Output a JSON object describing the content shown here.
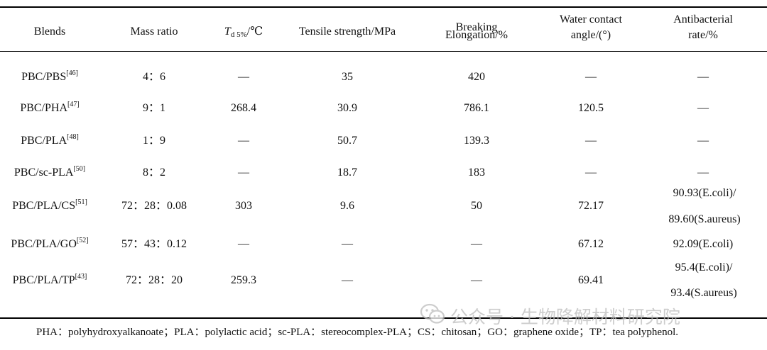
{
  "table": {
    "headers": {
      "blends": "Blends",
      "mass_ratio": "Mass ratio",
      "td": {
        "main": "T",
        "sub": "d 5%",
        "unit": "/℃"
      },
      "tensile": "Tensile strength/MPa",
      "breaking": [
        "Breaking",
        "Elongation/%"
      ],
      "water": [
        "Water contact",
        "angle/(°)"
      ],
      "antibacterial": [
        "Antibacterial",
        "rate/%"
      ]
    },
    "rows": [
      {
        "blend": "PBC/PBS",
        "ref": "[46]",
        "ratio": "4：6",
        "td": "—",
        "tensile": "35",
        "elong": "420",
        "water": "—",
        "anti": [
          "—"
        ]
      },
      {
        "blend": "PBC/PHA",
        "ref": "[47]",
        "ratio": "9：1",
        "td": "268.4",
        "tensile": "30.9",
        "elong": "786.1",
        "water": "120.5",
        "anti": [
          "—"
        ]
      },
      {
        "blend": "PBC/PLA",
        "ref": "[48]",
        "ratio": "1：9",
        "td": "—",
        "tensile": "50.7",
        "elong": "139.3",
        "water": "—",
        "anti": [
          "—"
        ]
      },
      {
        "blend": "PBC/sc-PLA",
        "ref": "[50]",
        "ratio": "8：2",
        "td": "—",
        "tensile": "18.7",
        "elong": "183",
        "water": "—",
        "anti": [
          "—"
        ]
      },
      {
        "blend": "PBC/PLA/CS",
        "ref": "[51]",
        "ratio": "72：28：0.08",
        "td": "303",
        "tensile": "9.6",
        "elong": "50",
        "water": "72.17",
        "anti": [
          "90.93(E.coli)/",
          "89.60(S.aureus)"
        ]
      },
      {
        "blend": "PBC/PLA/GO",
        "ref": "[52]",
        "ratio": "57：43：0.12",
        "td": "—",
        "tensile": "—",
        "elong": "—",
        "water": "67.12",
        "anti": [
          "92.09(E.coli)"
        ]
      },
      {
        "blend": "PBC/PLA/TP",
        "ref": "[43]",
        "ratio": "72：28：20",
        "td": "259.3",
        "tensile": "—",
        "elong": "—",
        "water": "69.41",
        "anti": [
          "95.4(E.coli)/",
          "93.4(S.aureus)"
        ]
      }
    ]
  },
  "footnote": "PHA：polyhydroxyalkanoate；PLA：polylactic acid；sc-PLA：stereocomplex-PLA；CS：chitosan；GO：graphene oxide；TP：tea polyphenol.",
  "watermark": {
    "icon": "wechat-icon",
    "text": "公众号 · 生物降解材料研究院"
  }
}
